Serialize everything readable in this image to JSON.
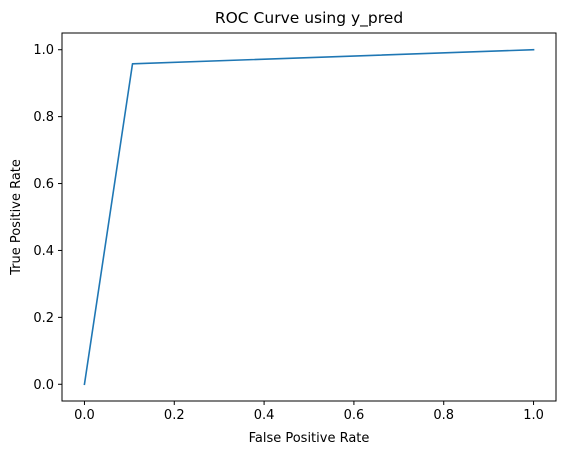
{
  "chart_data": {
    "type": "line",
    "title": "ROC Curve using y_pred",
    "xlabel": "False Positive Rate",
    "ylabel": "True Positive Rate",
    "xlim": [
      -0.05,
      1.05
    ],
    "ylim": [
      -0.05,
      1.05
    ],
    "x_ticks": [
      0.0,
      0.2,
      0.4,
      0.6,
      0.8,
      1.0
    ],
    "x_tick_labels": [
      "0.0",
      "0.2",
      "0.4",
      "0.6",
      "0.8",
      "1.0"
    ],
    "y_ticks": [
      0.0,
      0.2,
      0.4,
      0.6,
      0.8,
      1.0
    ],
    "y_tick_labels": [
      "0.0",
      "0.2",
      "0.4",
      "0.6",
      "0.8",
      "1.0"
    ],
    "grid": false,
    "series": [
      {
        "color": "#1f77b4",
        "x": [
          0.0,
          0.107,
          1.0
        ],
        "y": [
          0.0,
          0.958,
          1.0
        ]
      }
    ]
  }
}
